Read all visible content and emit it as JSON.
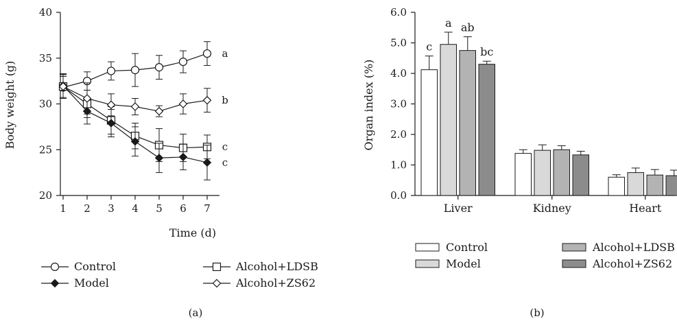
{
  "chart_data": [
    {
      "type": "line",
      "panel_label": "(a)",
      "xlabel": "Time (d)",
      "ylabel": "Body weight (g)",
      "xlim": [
        1,
        7
      ],
      "ylim": [
        20,
        40
      ],
      "x": [
        1,
        2,
        3,
        4,
        5,
        6,
        7
      ],
      "xticks": [
        "1",
        "2",
        "3",
        "4",
        "5",
        "6",
        "7"
      ],
      "yticks": [
        "20",
        "25",
        "30",
        "35",
        "40"
      ],
      "grid": false,
      "legend_position": "bottom",
      "series": [
        {
          "name": "Control",
          "marker": "open-circle",
          "values": [
            31.8,
            32.5,
            33.6,
            33.7,
            34.0,
            34.6,
            35.5
          ],
          "errors": [
            1.2,
            1.0,
            1.0,
            1.8,
            1.3,
            1.2,
            1.3
          ],
          "letter": "a"
        },
        {
          "name": "Alcohol+LDSB",
          "marker": "open-square",
          "values": [
            31.9,
            30.0,
            28.2,
            26.5,
            25.5,
            25.2,
            25.3
          ],
          "errors": [
            1.3,
            1.5,
            1.5,
            1.4,
            1.8,
            1.5,
            1.3
          ],
          "letter": "c"
        },
        {
          "name": "Model",
          "marker": "filled-diamond",
          "values": [
            32.0,
            29.2,
            27.9,
            25.9,
            24.1,
            24.2,
            23.6
          ],
          "errors": [
            1.3,
            1.4,
            1.5,
            1.6,
            1.6,
            1.4,
            1.9
          ],
          "letter": "c"
        },
        {
          "name": "Alcohol+ZS62",
          "marker": "open-diamond",
          "values": [
            31.9,
            30.6,
            29.9,
            29.7,
            29.2,
            30.0,
            30.4
          ],
          "errors": [
            1.3,
            1.7,
            1.2,
            0.9,
            0.6,
            1.1,
            1.3
          ],
          "letter": "b"
        }
      ]
    },
    {
      "type": "bar",
      "panel_label": "(b)",
      "xlabel": "",
      "ylabel": "Organ index (%)",
      "ylim": [
        0,
        6
      ],
      "yticks": [
        "0.0",
        "1.0",
        "2.0",
        "3.0",
        "4.0",
        "5.0",
        "6.0"
      ],
      "categories": [
        "Liver",
        "Kidney",
        "Heart"
      ],
      "grid": false,
      "legend_position": "bottom",
      "series": [
        {
          "name": "Control",
          "color": "#ffffff",
          "values": [
            4.12,
            1.38,
            0.6
          ],
          "errors": [
            0.45,
            0.12,
            0.08
          ]
        },
        {
          "name": "Model",
          "color": "#d9d9d9",
          "values": [
            4.95,
            1.48,
            0.75
          ],
          "errors": [
            0.4,
            0.18,
            0.15
          ]
        },
        {
          "name": "Alcohol+LDSB",
          "color": "#b3b3b3",
          "values": [
            4.75,
            1.5,
            0.67
          ],
          "errors": [
            0.45,
            0.13,
            0.18
          ]
        },
        {
          "name": "Alcohol+ZS62",
          "color": "#8c8c8c",
          "values": [
            4.3,
            1.33,
            0.65
          ],
          "errors": [
            0.1,
            0.12,
            0.18
          ]
        }
      ],
      "annotations": [
        {
          "category": "Liver",
          "series": "Control",
          "text": "c"
        },
        {
          "category": "Liver",
          "series": "Model",
          "text": "a"
        },
        {
          "category": "Liver",
          "series": "Alcohol+LDSB",
          "text": "ab"
        },
        {
          "category": "Liver",
          "series": "Alcohol+ZS62",
          "text": "bc"
        }
      ]
    }
  ]
}
